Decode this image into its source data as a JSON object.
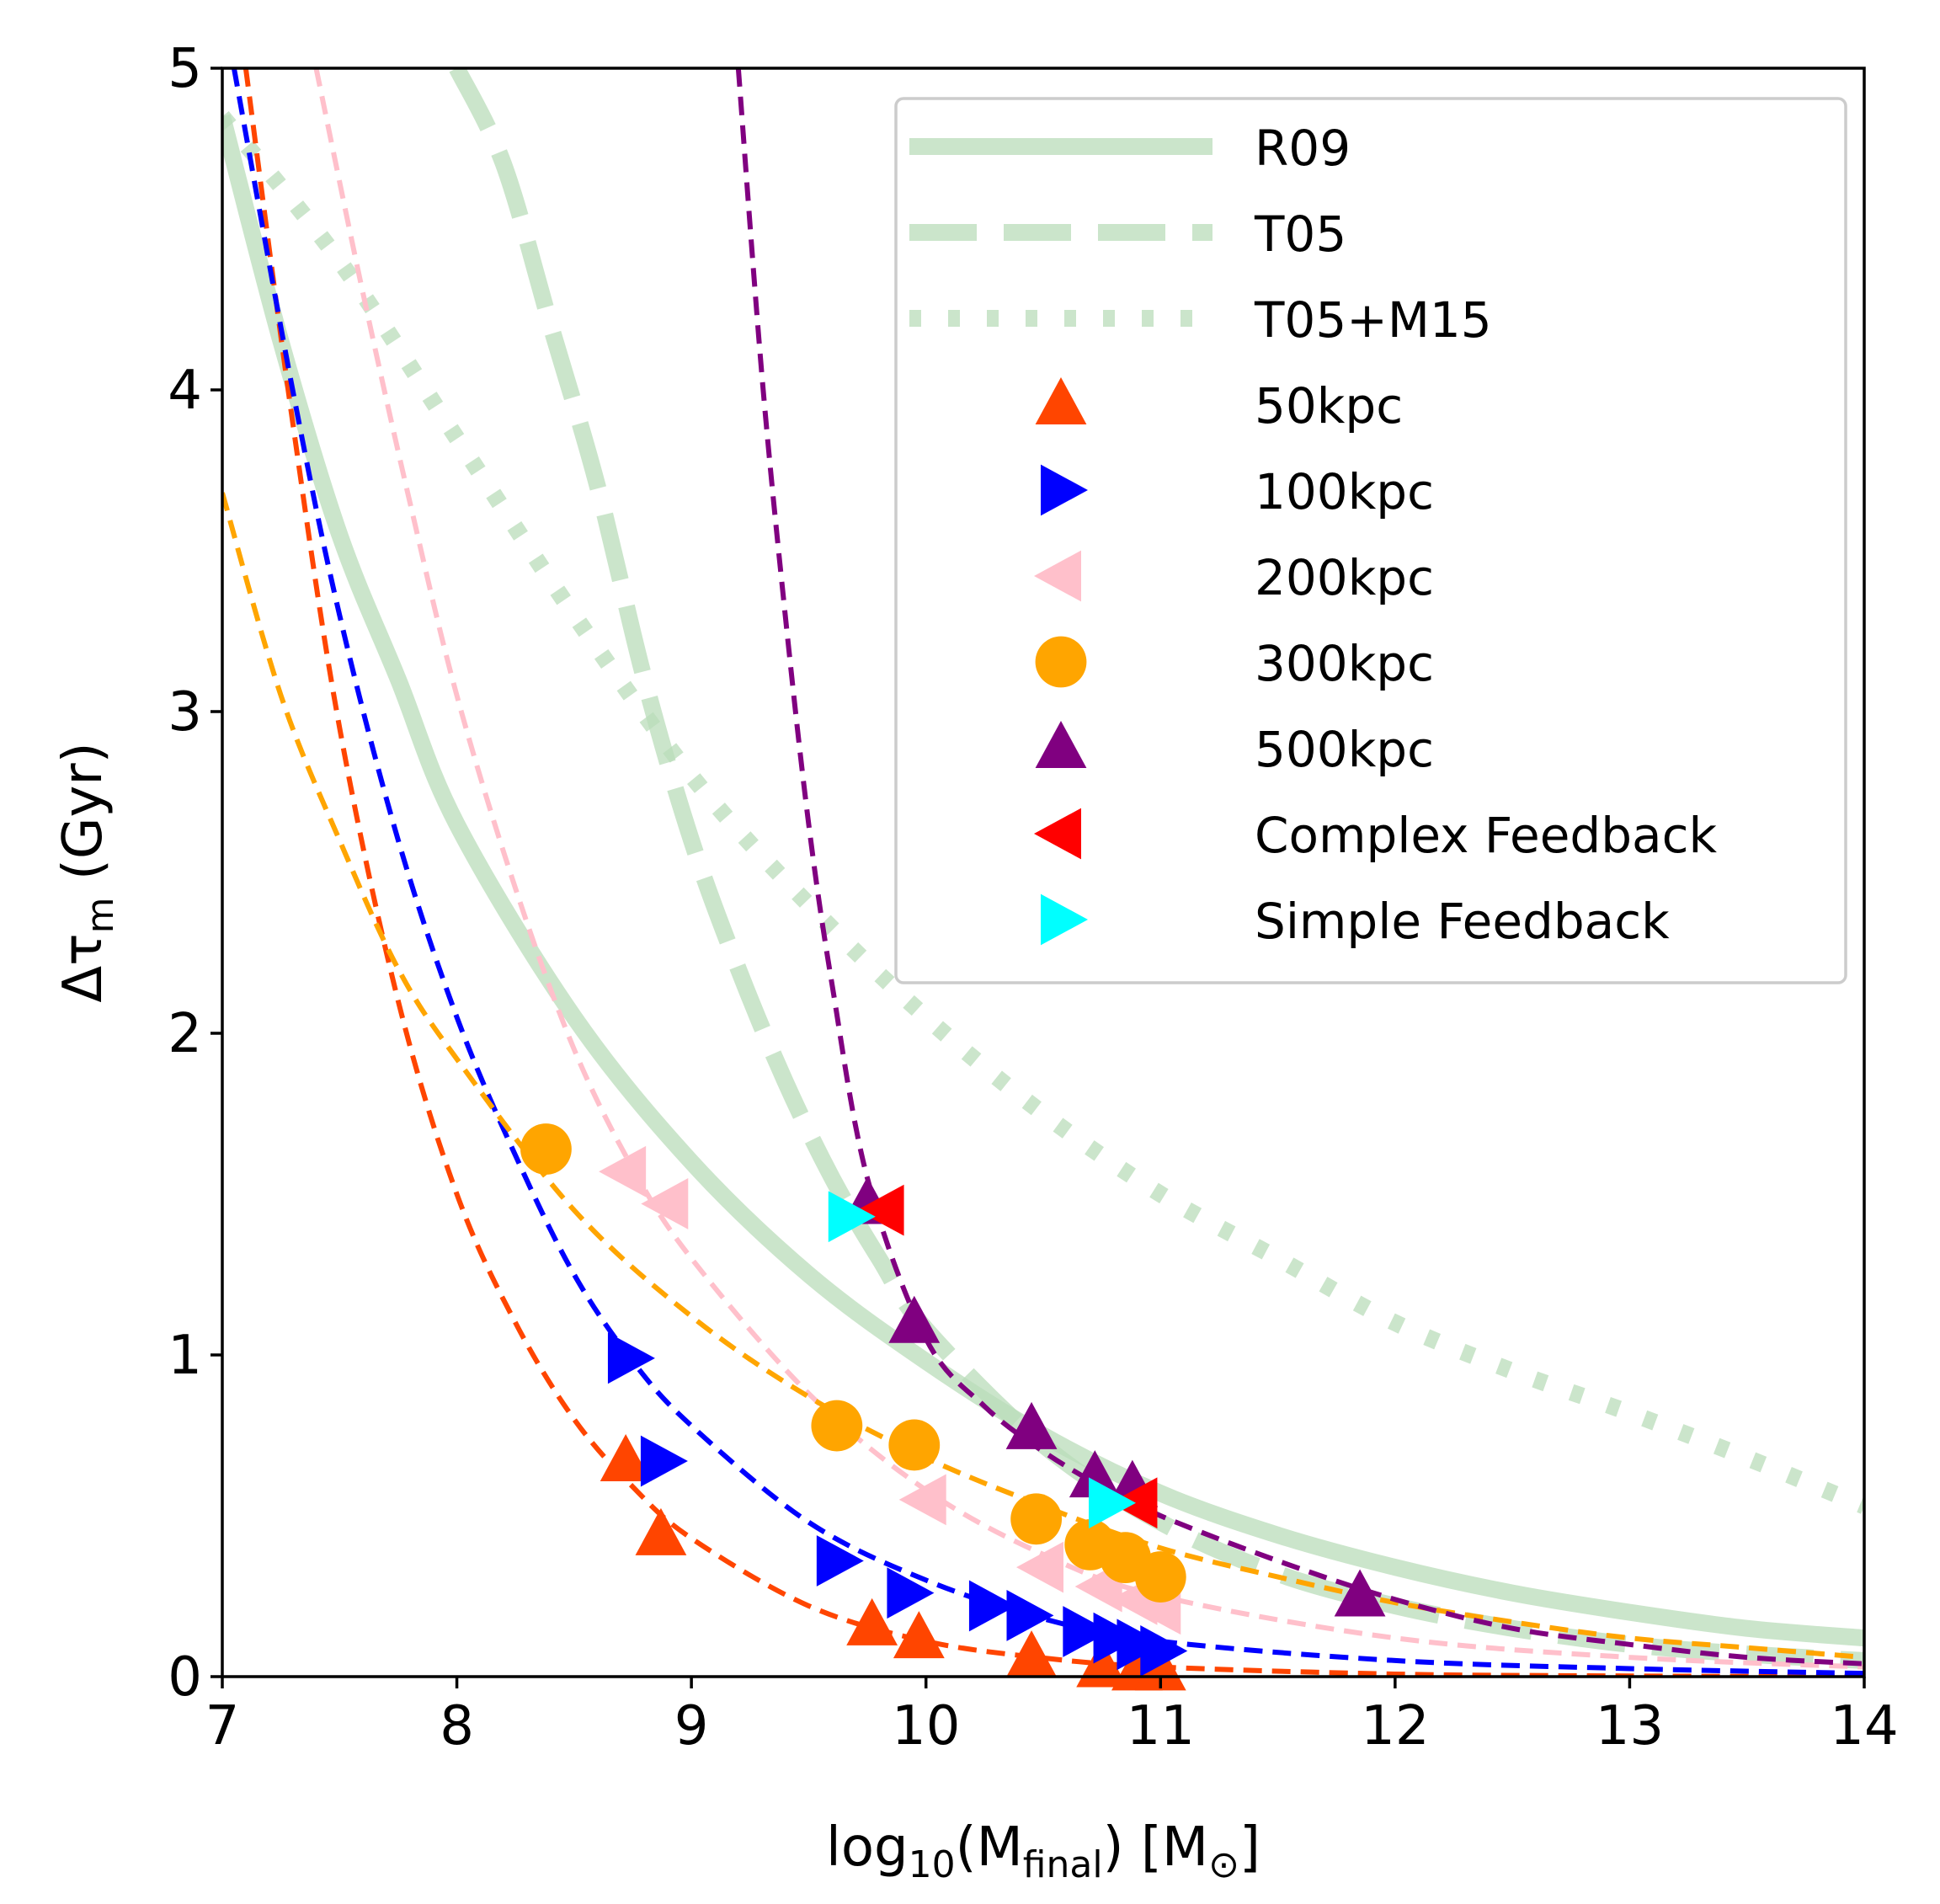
{
  "chart_data": {
    "type": "line+scatter",
    "xlabel": "log₁₀(M_final) [M_⊙]",
    "xlabel_parts": {
      "pre": "log",
      "sub1": "10",
      "mid": "(M",
      "sub2": "final",
      "post": ") [M",
      "sub3": "⊙",
      "end": "]"
    },
    "ylabel_parts": {
      "pre": "Δτ",
      "sub": "m",
      "post": " (Gyr)"
    },
    "xlim": [
      7,
      14
    ],
    "ylim": [
      0,
      5
    ],
    "xticks": [
      7,
      8,
      9,
      10,
      11,
      12,
      13,
      14
    ],
    "yticks": [
      0,
      1,
      2,
      3,
      4,
      5
    ],
    "grid": false,
    "legend_position": "top-right",
    "reference_curves": [
      {
        "name": "R09",
        "style": "solid",
        "color": "#b9dcb9",
        "x": [
          7.0,
          7.25,
          7.5,
          7.75,
          8.0,
          8.5,
          9.0,
          9.5,
          10.0,
          10.5,
          11.0,
          11.5,
          12.0,
          12.5,
          13.0,
          13.5,
          14.0
        ],
        "y": [
          4.85,
          4.15,
          3.55,
          3.1,
          2.65,
          2.05,
          1.6,
          1.25,
          0.98,
          0.75,
          0.57,
          0.44,
          0.34,
          0.26,
          0.2,
          0.15,
          0.12
        ]
      },
      {
        "name": "T05",
        "style": "dashed",
        "color": "#b9dcb9",
        "x": [
          8.0,
          8.2,
          8.4,
          8.6,
          8.8,
          9.0,
          9.2,
          9.4,
          9.6,
          9.8,
          10.0,
          10.5,
          11.0,
          11.5,
          12.0,
          12.5,
          13.0,
          13.5,
          14.0
        ],
        "y": [
          5.0,
          4.7,
          4.2,
          3.7,
          3.1,
          2.6,
          2.2,
          1.85,
          1.55,
          1.3,
          1.08,
          0.72,
          0.48,
          0.32,
          0.22,
          0.15,
          0.1,
          0.07,
          0.05
        ]
      },
      {
        "name": "T05+M15",
        "style": "dotted",
        "color": "#b9dcb9",
        "x": [
          7.0,
          7.5,
          8.0,
          8.5,
          9.0,
          9.5,
          10.0,
          10.5,
          11.0,
          11.5,
          12.0,
          12.5,
          13.0,
          13.5,
          14.0
        ],
        "y": [
          4.85,
          4.4,
          3.85,
          3.3,
          2.8,
          2.4,
          2.05,
          1.75,
          1.5,
          1.3,
          1.1,
          0.95,
          0.82,
          0.68,
          0.53
        ]
      }
    ],
    "series": [
      {
        "name": "50kpc",
        "color": "#ff4500",
        "marker": "triangle-up",
        "points": [
          [
            8.72,
            0.67
          ],
          [
            8.87,
            0.44
          ],
          [
            9.77,
            0.16
          ],
          [
            9.97,
            0.12
          ],
          [
            10.45,
            0.06
          ],
          [
            10.75,
            0.03
          ],
          [
            10.9,
            0.02
          ],
          [
            11.0,
            0.02
          ]
        ],
        "fit": {
          "x": [
            7.1,
            7.3,
            7.5,
            7.75,
            8.0,
            8.25,
            8.5,
            8.75,
            9.0,
            9.5,
            10.0,
            10.5,
            11.0,
            12.0,
            13.0,
            14.0
          ],
          "y": [
            5.0,
            3.9,
            2.95,
            2.1,
            1.5,
            1.1,
            0.8,
            0.59,
            0.43,
            0.22,
            0.11,
            0.058,
            0.03,
            0.008,
            0.002,
            0.0
          ]
        }
      },
      {
        "name": "100kpc",
        "color": "#0000ff",
        "marker": "triangle-right",
        "points": [
          [
            8.73,
            0.99
          ],
          [
            8.87,
            0.67
          ],
          [
            9.62,
            0.36
          ],
          [
            9.92,
            0.26
          ],
          [
            10.27,
            0.22
          ],
          [
            10.43,
            0.19
          ],
          [
            10.67,
            0.14
          ],
          [
            10.8,
            0.12
          ],
          [
            10.9,
            0.1
          ],
          [
            11.0,
            0.08
          ]
        ],
        "fit": {
          "x": [
            7.05,
            7.3,
            7.5,
            7.75,
            8.0,
            8.25,
            8.5,
            8.75,
            9.0,
            9.5,
            10.0,
            10.5,
            11.0,
            12.0,
            13.0,
            14.0
          ],
          "y": [
            5.0,
            4.0,
            3.3,
            2.6,
            2.05,
            1.62,
            1.25,
            0.98,
            0.78,
            0.48,
            0.3,
            0.18,
            0.11,
            0.05,
            0.025,
            0.01
          ]
        }
      },
      {
        "name": "200kpc",
        "color": "#ffc0cb",
        "marker": "triangle-left",
        "points": [
          [
            8.72,
            1.57
          ],
          [
            8.9,
            1.47
          ],
          [
            10.0,
            0.55
          ],
          [
            10.5,
            0.34
          ],
          [
            10.75,
            0.28
          ],
          [
            10.9,
            0.24
          ],
          [
            11.0,
            0.21
          ]
        ],
        "fit": {
          "x": [
            7.4,
            7.6,
            7.8,
            8.0,
            8.25,
            8.5,
            8.75,
            9.0,
            9.5,
            10.0,
            10.5,
            11.0,
            12.0,
            13.0,
            14.0
          ],
          "y": [
            5.0,
            4.3,
            3.65,
            3.05,
            2.45,
            1.95,
            1.58,
            1.3,
            0.88,
            0.58,
            0.38,
            0.25,
            0.12,
            0.06,
            0.03
          ]
        }
      },
      {
        "name": "300kpc",
        "color": "#ffa500",
        "marker": "circle",
        "points": [
          [
            8.38,
            1.64
          ],
          [
            9.62,
            0.78
          ],
          [
            9.95,
            0.72
          ],
          [
            10.47,
            0.49
          ],
          [
            10.7,
            0.41
          ],
          [
            10.85,
            0.37
          ],
          [
            11.0,
            0.31
          ]
        ],
        "fit": {
          "x": [
            7.0,
            7.25,
            7.5,
            7.75,
            8.0,
            8.5,
            9.0,
            9.5,
            10.0,
            10.5,
            11.0,
            11.5,
            12.0,
            12.5,
            13.0,
            13.5,
            14.0
          ],
          "y": [
            3.68,
            3.05,
            2.6,
            2.2,
            1.92,
            1.45,
            1.12,
            0.87,
            0.68,
            0.53,
            0.4,
            0.31,
            0.23,
            0.17,
            0.12,
            0.09,
            0.06
          ]
        }
      },
      {
        "name": "500kpc",
        "color": "#800080",
        "marker": "triangle-up",
        "points": [
          [
            9.75,
            1.47
          ],
          [
            9.95,
            1.1
          ],
          [
            10.45,
            0.77
          ],
          [
            10.72,
            0.62
          ],
          [
            10.88,
            0.59
          ],
          [
            11.85,
            0.25
          ]
        ],
        "fit": {
          "x": [
            9.2,
            9.3,
            9.4,
            9.5,
            9.6,
            9.75,
            10.0,
            10.25,
            10.5,
            10.75,
            11.0,
            11.5,
            12.0,
            12.5,
            13.0,
            13.5,
            14.0
          ],
          "y": [
            5.0,
            4.05,
            3.3,
            2.65,
            2.15,
            1.55,
            1.05,
            0.84,
            0.7,
            0.59,
            0.5,
            0.36,
            0.24,
            0.15,
            0.1,
            0.06,
            0.04
          ]
        }
      },
      {
        "name": "Complex Feedback",
        "color": "#ff0000",
        "marker": "triangle-left",
        "points": [
          [
            9.82,
            1.45
          ],
          [
            10.9,
            0.54
          ]
        ],
        "fit": null
      },
      {
        "name": "Simple Feedback",
        "color": "#00ffff",
        "marker": "triangle-right",
        "points": [
          [
            9.67,
            1.43
          ],
          [
            10.78,
            0.54
          ]
        ],
        "fit": null
      }
    ],
    "legend": [
      {
        "label": "R09",
        "kind": "solid",
        "color": "#b9dcb9"
      },
      {
        "label": "T05",
        "kind": "dashed",
        "color": "#b9dcb9"
      },
      {
        "label": "T05+M15",
        "kind": "dotted",
        "color": "#b9dcb9"
      },
      {
        "label": "50kpc",
        "kind": "triangle-up",
        "color": "#ff4500"
      },
      {
        "label": "100kpc",
        "kind": "triangle-right",
        "color": "#0000ff"
      },
      {
        "label": "200kpc",
        "kind": "triangle-left",
        "color": "#ffc0cb"
      },
      {
        "label": "300kpc",
        "kind": "circle",
        "color": "#ffa500"
      },
      {
        "label": "500kpc",
        "kind": "triangle-up",
        "color": "#800080"
      },
      {
        "label": "Complex Feedback",
        "kind": "triangle-left",
        "color": "#ff0000"
      },
      {
        "label": "Simple Feedback",
        "kind": "triangle-right",
        "color": "#00ffff"
      }
    ]
  }
}
